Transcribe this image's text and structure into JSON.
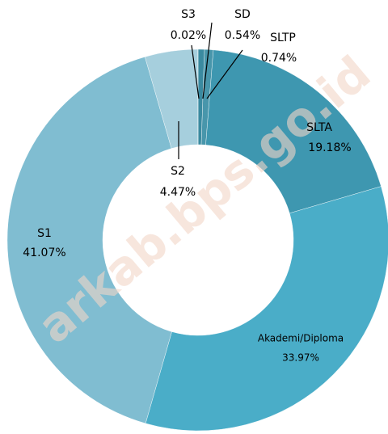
{
  "chart_data": {
    "type": "donut",
    "categories": [
      "SD",
      "SLTP",
      "SLTA",
      "Akademi/Diploma",
      "S1",
      "S2",
      "S3"
    ],
    "values": [
      0.54,
      0.74,
      19.18,
      33.97,
      41.07,
      4.47,
      0.02
    ],
    "value_labels": [
      "0.54%",
      "0.74%",
      "19.18%",
      "33.97%",
      "41.07%",
      "4.47%",
      "0.02%"
    ],
    "colors": [
      "#3a8aa0",
      "#4896ab",
      "#3e97b0",
      "#4aadc8",
      "#80bdd1",
      "#a6cfdd",
      "#2f7f94"
    ],
    "watermark": "arkab.bps.go.id"
  }
}
